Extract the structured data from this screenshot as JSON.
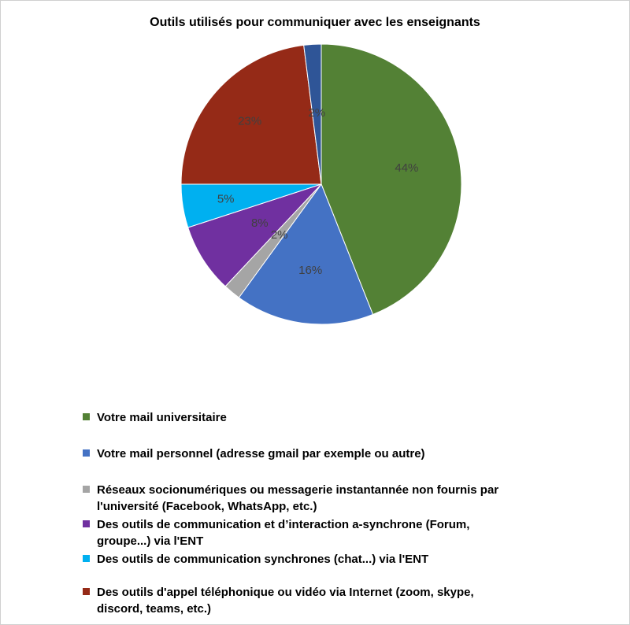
{
  "chart_data": {
    "type": "pie",
    "title": "Outils utilisés pour communiquer avec les enseignants",
    "slices": [
      {
        "name": "Votre mail universitaire",
        "value": 44,
        "label": "44%",
        "color": "#538135"
      },
      {
        "name": "Votre mail personnel (adresse gmail par exemple ou autre)",
        "value": 16,
        "label": "16%",
        "color": "#4472C4"
      },
      {
        "name": "Réseaux socionumériques ou messagerie instantannée non fournis par l'université (Facebook, WhatsApp, etc.)",
        "value": 2,
        "label": "2%",
        "color": "#A5A5A5"
      },
      {
        "name": "Des outils de communication et d’interaction a-synchrone (Forum, groupe...) via l'ENT",
        "value": 8,
        "label": "8%",
        "color": "#7030A0"
      },
      {
        "name": "Des outils de communication synchrones (chat...) via l'ENT",
        "value": 5,
        "label": "5%",
        "color": "#00B0F0"
      },
      {
        "name": "Des outils d'appel téléphonique ou vidéo via Internet (zoom, skype, discord, teams, etc.)",
        "value": 23,
        "label": "23%",
        "color": "#952A17"
      },
      {
        "name": "",
        "value": 2,
        "label": "2%",
        "color": "#2F5597"
      }
    ],
    "legend_position": "bottom"
  }
}
